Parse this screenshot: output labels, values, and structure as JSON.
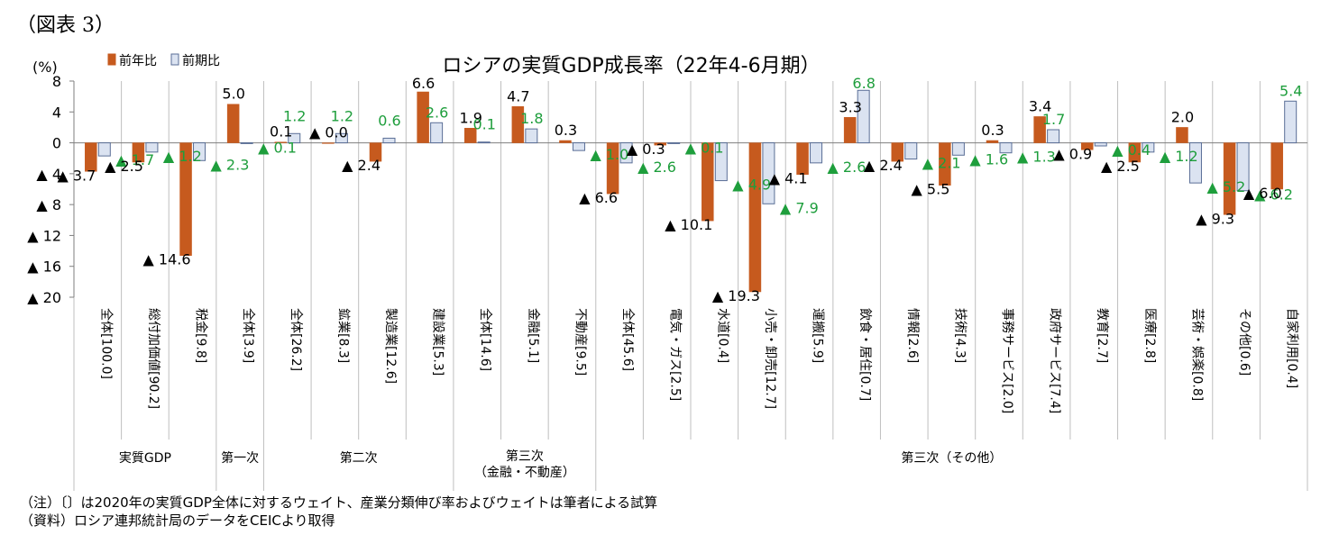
{
  "figure_label": "（図表 3）",
  "notes": [
    "（注）〔〕は2020年の実質GDP全体に対するウェイト、産業分類伸び率およびウェイトは筆者による試算",
    "（資料）ロシア連邦統計局のデータをCEICより取得"
  ],
  "colors": {
    "yoy": "#c65a1e",
    "qoq": "#dbe3f1",
    "qoq_stroke": "#5a6e96",
    "green": "#1e9e3c"
  },
  "chart_data": {
    "type": "bar",
    "title": "ロシアの実質GDP成長率（22年4-6月期）",
    "ylabel": "(%)",
    "ylim": [
      -20,
      8
    ],
    "yticks": [
      8,
      4,
      0,
      -4,
      -8,
      -12,
      -16,
      -20
    ],
    "ytick_labels": [
      "8",
      "4",
      "0",
      "▲ 4",
      "▲ 8",
      "▲ 12",
      "▲ 16",
      "▲ 20"
    ],
    "legend": {
      "position": "top-left",
      "entries": [
        "前年比",
        "前期比"
      ]
    },
    "categories": [
      "全体[100.0]",
      "総付加価値[90.2]",
      "税金[9.8]",
      "全体[3.9]",
      "全体[26.2]",
      "鉱業[8.3]",
      "製造業[12.6]",
      "建設業[5.3]",
      "全体[14.6]",
      "金融[5.1]",
      "不動産[9.5]",
      "全体[45.6]",
      "電気・ガス[2.5]",
      "水道[0.4]",
      "小売・卸売[12.7]",
      "運搬[5.9]",
      "飲食・居住[0.7]",
      "情報[2.6]",
      "技術[4.3]",
      "事務サービス[2.0]",
      "政府サービス[7.4]",
      "教育[2.7]",
      "医療[2.8]",
      "芸術・娯楽[0.8]",
      "その他[0.6]",
      "自家利用[0.4]"
    ],
    "series": [
      {
        "name": "前年比",
        "values": [
          -3.7,
          -2.5,
          -14.6,
          5.0,
          0.1,
          0.0,
          -2.4,
          6.6,
          1.9,
          4.7,
          0.3,
          -6.6,
          -0.3,
          -10.1,
          -19.3,
          -4.1,
          3.3,
          -2.4,
          -5.5,
          0.3,
          3.4,
          -0.9,
          -2.5,
          2.0,
          -9.3,
          -6.0
        ],
        "labels": [
          "▲ 3.7",
          "▲ 2.5",
          "▲ 14.6",
          "5.0",
          "0.1",
          "▲ 0.0",
          "▲ 2.4",
          "6.6",
          "1.9",
          "4.7",
          "0.3",
          "▲ 6.6",
          "▲ 0.3",
          "▲ 10.1",
          "▲ 19.3",
          "▲ 4.1",
          "3.3",
          "▲ 2.4",
          "▲ 5.5",
          "0.3",
          "3.4",
          "▲ 0.9",
          "▲ 2.5",
          "2.0",
          "▲ 9.3",
          "▲ 6.0"
        ]
      },
      {
        "name": "前期比",
        "values": [
          -1.7,
          -1.2,
          -2.3,
          -0.1,
          1.2,
          1.2,
          0.6,
          2.6,
          0.1,
          1.8,
          -1.0,
          -2.6,
          -0.1,
          -4.9,
          -7.9,
          -2.6,
          6.8,
          -2.1,
          -1.6,
          -1.3,
          1.7,
          -0.4,
          -1.2,
          -5.2,
          -6.2,
          5.4
        ],
        "labels": [
          "▲ 1.7",
          "▲ 1.2",
          "▲ 2.3",
          "▲ 0.1",
          "1.2",
          "1.2",
          "0.6",
          "2.6",
          "0.1",
          "1.8",
          "▲ 1.0",
          "▲ 2.6",
          "▲ 0.1",
          "▲ 4.9",
          "▲ 7.9",
          "▲ 2.6",
          "6.8",
          "▲ 2.1",
          "▲ 1.6",
          "▲ 1.3",
          "1.7",
          "▲ 0.4",
          "▲ 1.2",
          "▲ 5.2",
          "▲ 6.2",
          "5.4"
        ]
      }
    ],
    "groups": [
      {
        "label": "実質GDP",
        "start": 0,
        "end": 2
      },
      {
        "label": "第一次",
        "start": 3,
        "end": 3
      },
      {
        "label": "第二次",
        "start": 4,
        "end": 7
      },
      {
        "label": "第三次\n（金融・不動産）",
        "start": 8,
        "end": 10
      },
      {
        "label": "第三次（その他）",
        "start": 11,
        "end": 25
      }
    ]
  }
}
